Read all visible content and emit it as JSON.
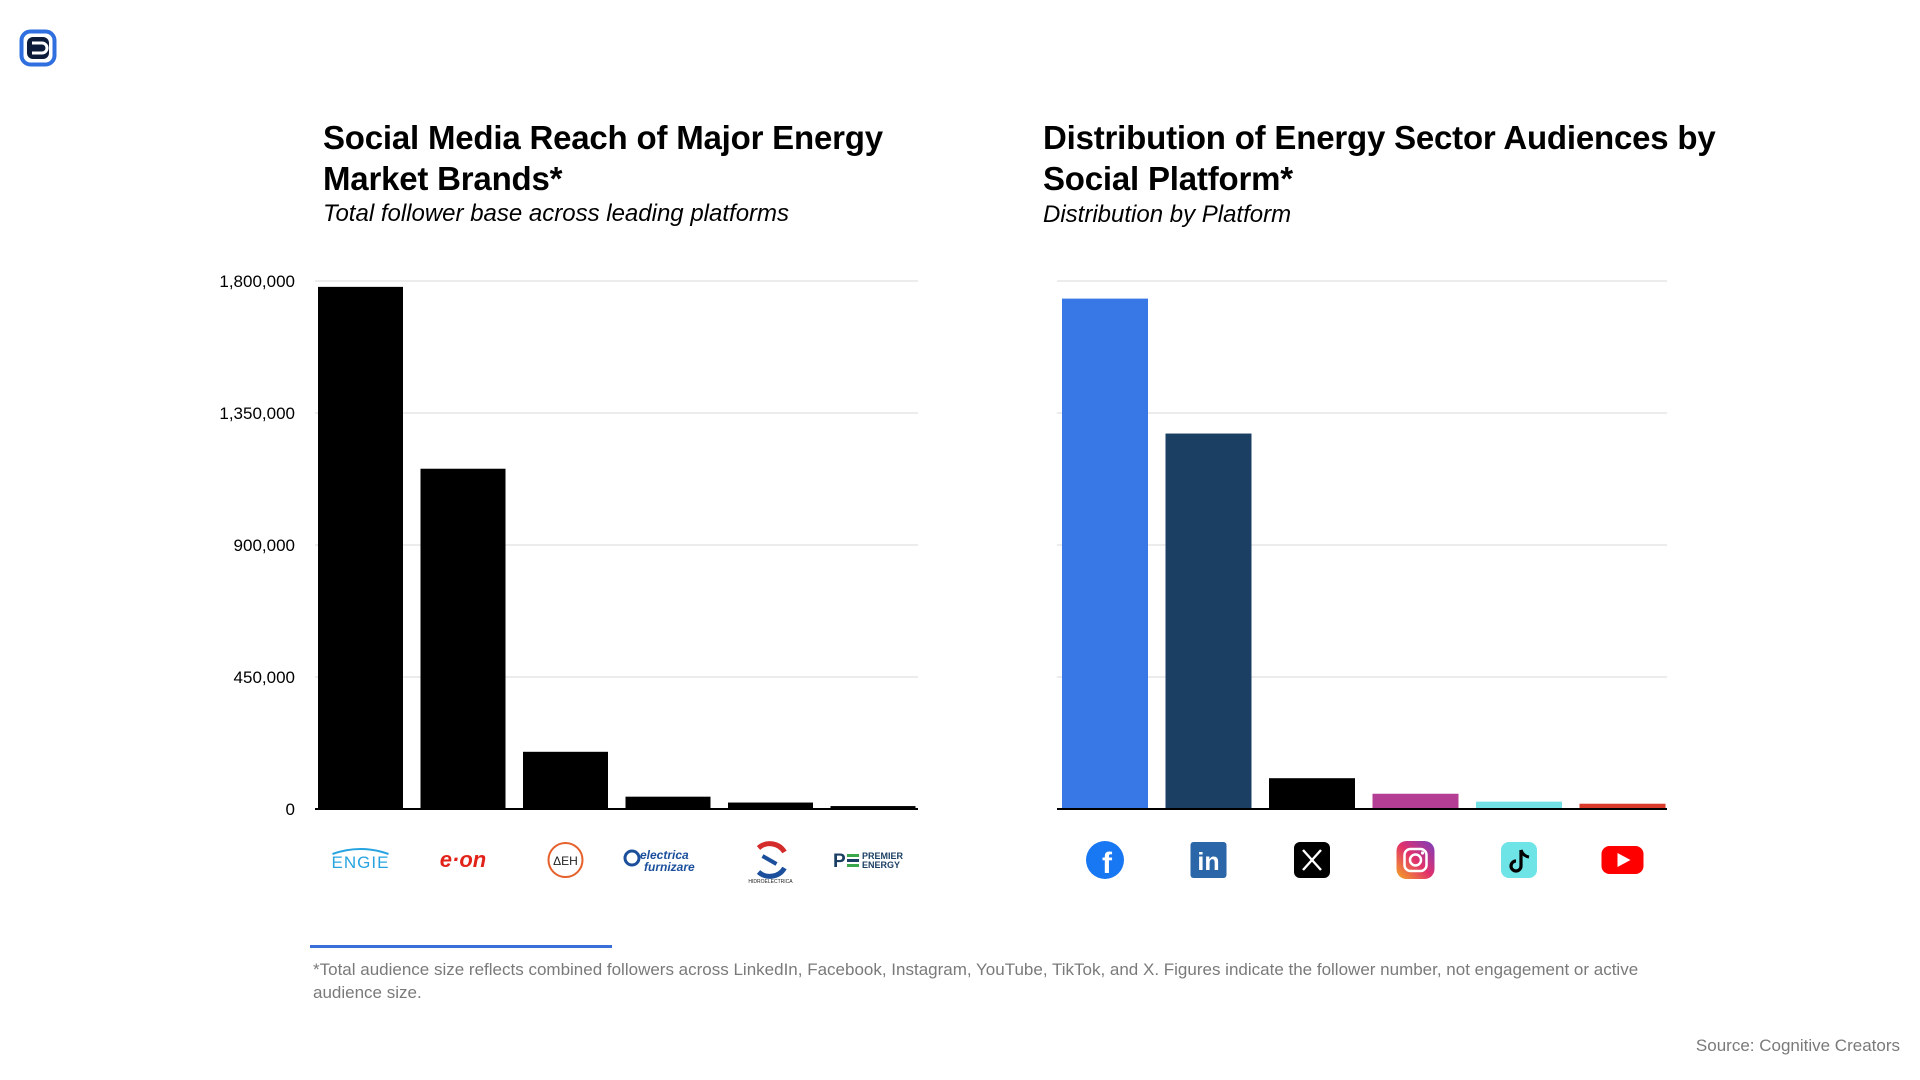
{
  "brand": {
    "logo_icon": "cognitive-creators-logo-icon",
    "accent": "#2f6fe0"
  },
  "left": {
    "title": "Social Media Reach of Major Energy Market Brands*",
    "subtitle": "Total follower base across leading platforms"
  },
  "right": {
    "title": "Distribution of Energy Sector Audiences by Social Platform*",
    "subtitle": "Distribution by Platform"
  },
  "chart_data": [
    {
      "type": "bar",
      "title": "Social Media Reach of Major Energy Market Brands*",
      "subtitle": "Total follower base across leading platforms",
      "categories": [
        "ENGIE",
        "E.ON",
        "ΔEH",
        "Electrica Furnizare",
        "Hidroelectrica",
        "Premier Energy"
      ],
      "category_logo_text": [
        "ENGIE",
        "e·on",
        "ΔEH",
        "electrica furnizare",
        "HIDROELECTRICA",
        "PREMIER ENERGY"
      ],
      "values": [
        1780000,
        1160000,
        195000,
        42000,
        22000,
        10000
      ],
      "ylim": [
        0,
        1800000
      ],
      "yticks": [
        0,
        450000,
        900000,
        1350000,
        1800000
      ],
      "ytick_labels": [
        "0",
        "450,000",
        "900,000",
        "1,350,000",
        "1,800,000"
      ],
      "bar_color": "#000000",
      "grid": true
    },
    {
      "type": "bar",
      "title": "Distribution of Energy Sector Audiences by Social Platform*",
      "subtitle": "Distribution by Platform",
      "categories": [
        "Facebook",
        "LinkedIn",
        "X",
        "Instagram",
        "TikTok",
        "YouTube"
      ],
      "category_icons": [
        "facebook-icon",
        "linkedin-icon",
        "x-icon",
        "instagram-icon",
        "tiktok-icon",
        "youtube-icon"
      ],
      "values": [
        1740000,
        1280000,
        105000,
        52000,
        25000,
        18000
      ],
      "ylim": [
        0,
        1800000
      ],
      "colors": [
        "#3877e6",
        "#1b3f63",
        "#000000",
        "#b43e93",
        "#73e0e4",
        "#d93a2a"
      ],
      "grid": true
    }
  ],
  "footnote": "*Total audience size reflects combined followers across LinkedIn, Facebook, Instagram, YouTube, TikTok, and X. Figures indicate the follower number, not engagement or active audience size.",
  "source": "Source: Cognitive Creators"
}
